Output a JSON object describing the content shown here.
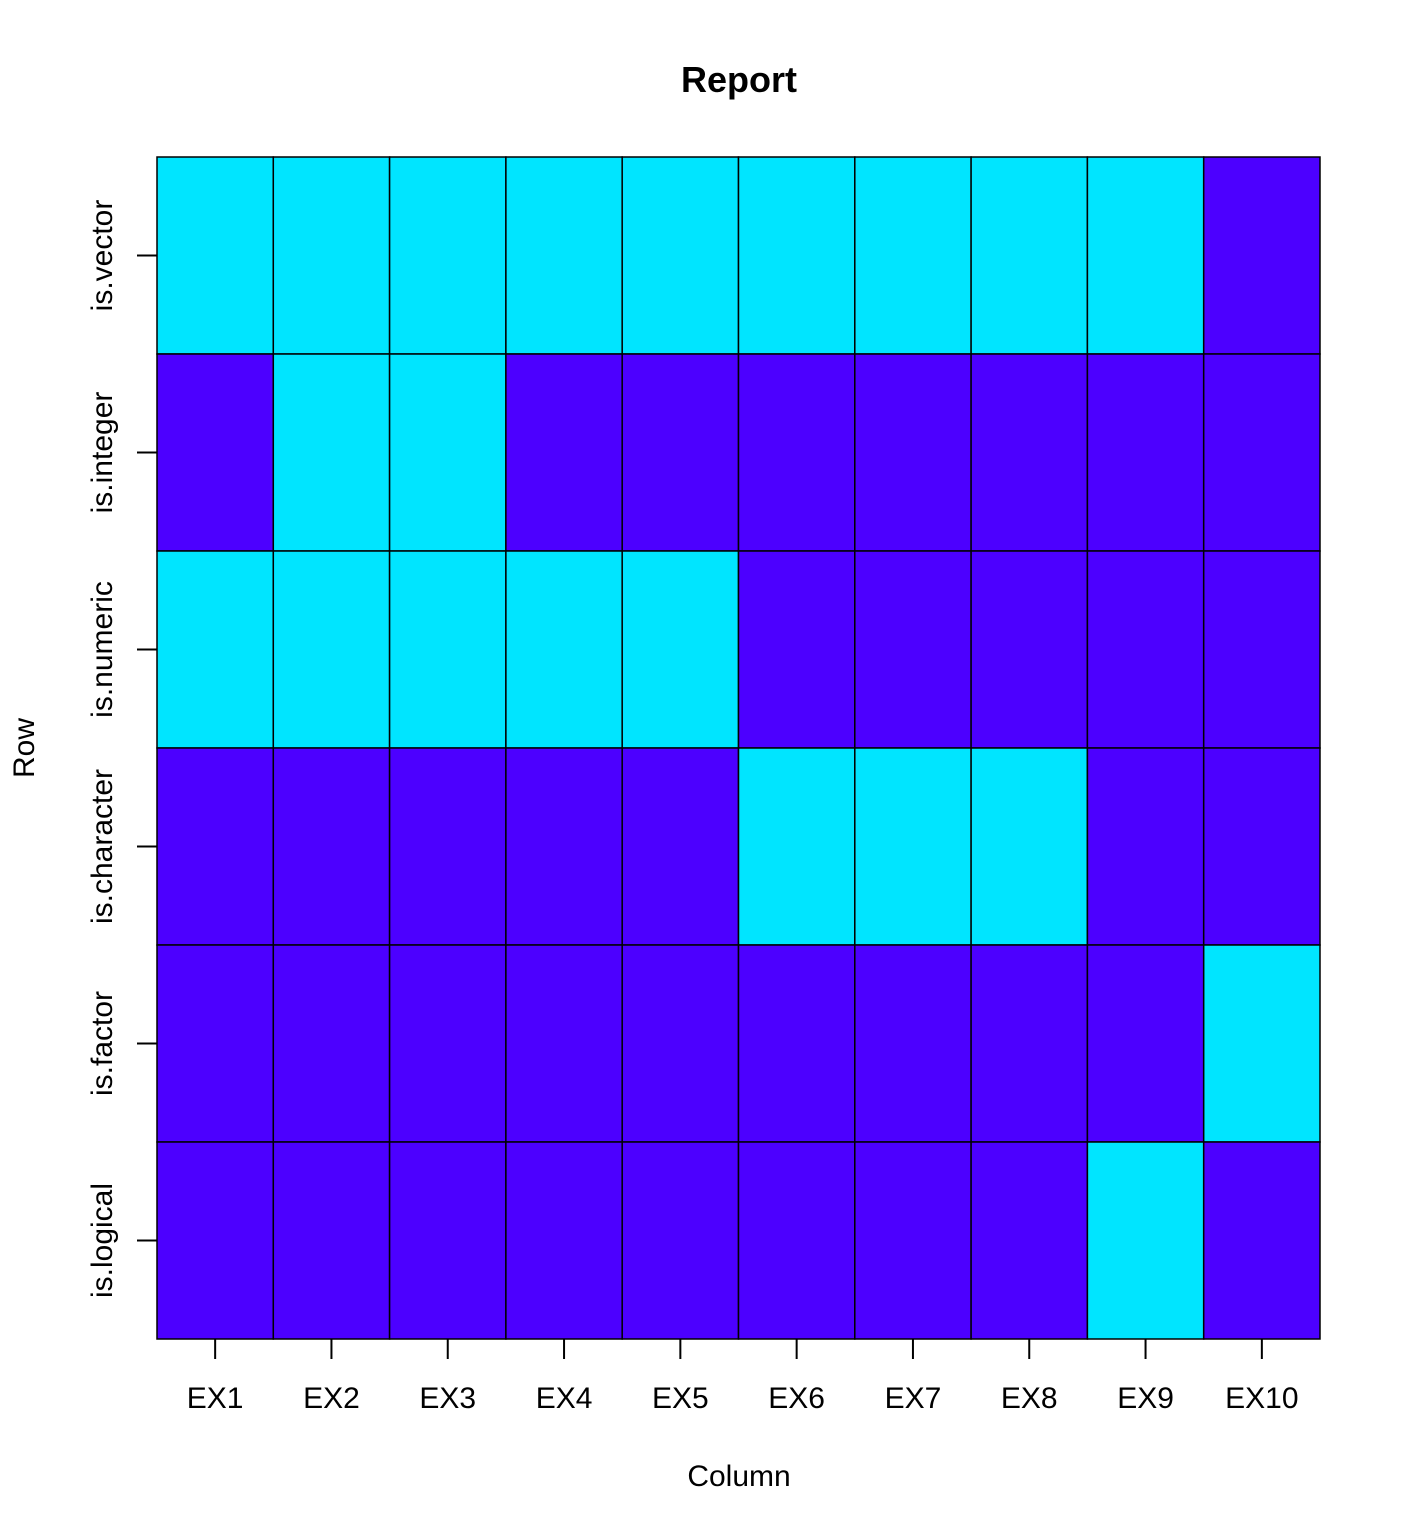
{
  "chart_data": {
    "type": "heatmap",
    "title": "Report",
    "xlabel": "Column",
    "ylabel": "Row",
    "columns": [
      "EX1",
      "EX2",
      "EX3",
      "EX4",
      "EX5",
      "EX6",
      "EX7",
      "EX8",
      "EX9",
      "EX10"
    ],
    "rows": [
      "is.vector",
      "is.integer",
      "is.numeric",
      "is.character",
      "is.factor",
      "is.logical"
    ],
    "values": [
      [
        1,
        1,
        1,
        1,
        1,
        1,
        1,
        1,
        1,
        0
      ],
      [
        0,
        1,
        1,
        0,
        0,
        0,
        0,
        0,
        0,
        0
      ],
      [
        1,
        1,
        1,
        1,
        1,
        0,
        0,
        0,
        0,
        0
      ],
      [
        0,
        0,
        0,
        0,
        0,
        1,
        1,
        1,
        0,
        0
      ],
      [
        0,
        0,
        0,
        0,
        0,
        0,
        0,
        0,
        0,
        1
      ],
      [
        0,
        0,
        0,
        0,
        0,
        0,
        0,
        0,
        1,
        0
      ]
    ],
    "colors": {
      "true": "#00E5FF",
      "false": "#4C00FF",
      "border": "#000000"
    }
  }
}
